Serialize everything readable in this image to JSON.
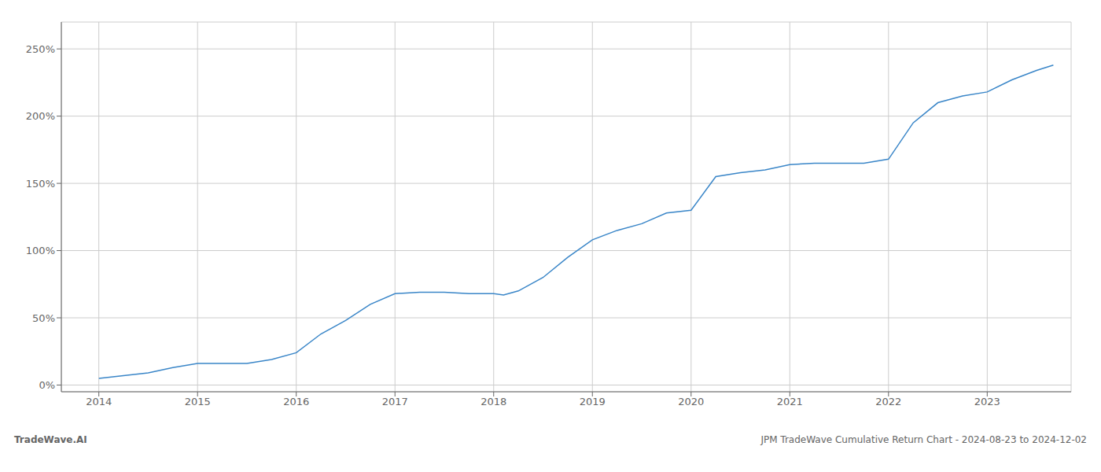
{
  "chart_data": {
    "type": "line",
    "title": "JPM TradeWave Cumulative Return Chart - 2024-08-23 to 2024-12-02",
    "annotations": [
      "TradeWave.AI"
    ],
    "color": "#3a86c8",
    "x": [
      2014.0,
      2014.25,
      2014.5,
      2014.75,
      2015.0,
      2015.25,
      2015.5,
      2015.75,
      2016.0,
      2016.25,
      2016.5,
      2016.75,
      2017.0,
      2017.25,
      2017.5,
      2017.75,
      2018.0,
      2018.1,
      2018.25,
      2018.5,
      2018.75,
      2019.0,
      2019.25,
      2019.5,
      2019.75,
      2020.0,
      2020.25,
      2020.5,
      2020.75,
      2021.0,
      2021.25,
      2021.5,
      2021.75,
      2022.0,
      2022.25,
      2022.5,
      2022.75,
      2023.0,
      2023.25,
      2023.5,
      2023.67
    ],
    "values": [
      5,
      7,
      9,
      13,
      16,
      16,
      16,
      19,
      24,
      38,
      48,
      60,
      68,
      69,
      69,
      68,
      68,
      67,
      70,
      80,
      95,
      108,
      115,
      120,
      128,
      130,
      155,
      158,
      160,
      164,
      165,
      165,
      165,
      168,
      195,
      210,
      215,
      218,
      227,
      234,
      238
    ],
    "xlim": [
      2013.62,
      2023.85
    ],
    "ylim": [
      -5,
      270
    ],
    "xticks": [
      2014,
      2015,
      2016,
      2017,
      2018,
      2019,
      2020,
      2021,
      2022,
      2023
    ],
    "yticks": [
      {
        "value": 0,
        "label": "0%"
      },
      {
        "value": 50,
        "label": "50%"
      },
      {
        "value": 100,
        "label": "100%"
      },
      {
        "value": 150,
        "label": "150%"
      },
      {
        "value": 200,
        "label": "200%"
      },
      {
        "value": 250,
        "label": "250%"
      }
    ],
    "grid": true
  }
}
